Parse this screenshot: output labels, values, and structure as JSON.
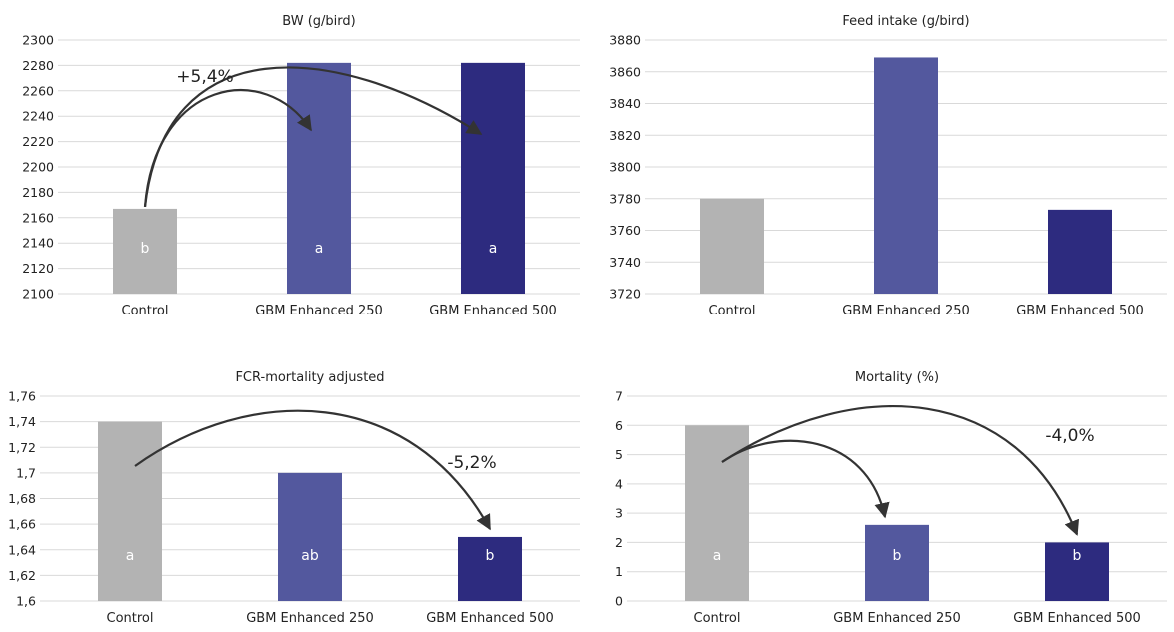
{
  "colors": {
    "control": "#b3b3b3",
    "gbm250": "#53589e",
    "gbm500": "#2d2b7f",
    "grid": "#d9d9d9",
    "text": "#222222",
    "arrow": "#333333",
    "letter": "#ffffff"
  },
  "chart_data": [
    {
      "type": "bar",
      "title": "BW (g/bird)",
      "categories": [
        "Control",
        "GBM Enhanced 250",
        "GBM Enhanced 500"
      ],
      "values": [
        2167,
        2282,
        2282
      ],
      "ylim": [
        2100,
        2300
      ],
      "yticks": [
        "2100",
        "2120",
        "2140",
        "2160",
        "2180",
        "2200",
        "2220",
        "2240",
        "2260",
        "2280",
        "2300"
      ],
      "grid": true,
      "letters": [
        "b",
        "a",
        "a"
      ],
      "annotation": "+5,4%",
      "arrows": [
        {
          "from": 0,
          "to": 1
        },
        {
          "from": 0,
          "to": 2
        }
      ]
    },
    {
      "type": "bar",
      "title": "Feed intake (g/bird)",
      "categories": [
        "Control",
        "GBM Enhanced 250",
        "GBM Enhanced 500"
      ],
      "values": [
        3780,
        3869,
        3773
      ],
      "ylim": [
        3720,
        3880
      ],
      "yticks": [
        "3720",
        "3740",
        "3760",
        "3780",
        "3800",
        "3820",
        "3840",
        "3860",
        "3880"
      ],
      "grid": true,
      "letters": [
        "",
        "",
        ""
      ],
      "annotation": "",
      "arrows": []
    },
    {
      "type": "bar",
      "title": "FCR-mortality adjusted",
      "categories": [
        "Control",
        "GBM Enhanced 250",
        "GBM Enhanced 500"
      ],
      "values": [
        1.74,
        1.7,
        1.65
      ],
      "ylim": [
        1.6,
        1.76
      ],
      "yticks": [
        "1,6",
        "1,62",
        "1,64",
        "1,66",
        "1,68",
        "1,7",
        "1,72",
        "1,74",
        "1,76"
      ],
      "grid": true,
      "letters": [
        "a",
        "ab",
        "b"
      ],
      "annotation": "-5,2%",
      "arrows": [
        {
          "from": 0,
          "to": 2
        }
      ]
    },
    {
      "type": "bar",
      "title": "Mortality (%)",
      "categories": [
        "Control",
        "GBM Enhanced 250",
        "GBM Enhanced 500"
      ],
      "values": [
        6.0,
        2.6,
        2.0
      ],
      "ylim": [
        0,
        7
      ],
      "yticks": [
        "0",
        "1",
        "2",
        "3",
        "4",
        "5",
        "6",
        "7"
      ],
      "grid": true,
      "letters": [
        "a",
        "b",
        "b"
      ],
      "annotation": "-4,0%",
      "arrows": [
        {
          "from": 0,
          "to": 1
        },
        {
          "from": 0,
          "to": 2
        }
      ]
    }
  ]
}
